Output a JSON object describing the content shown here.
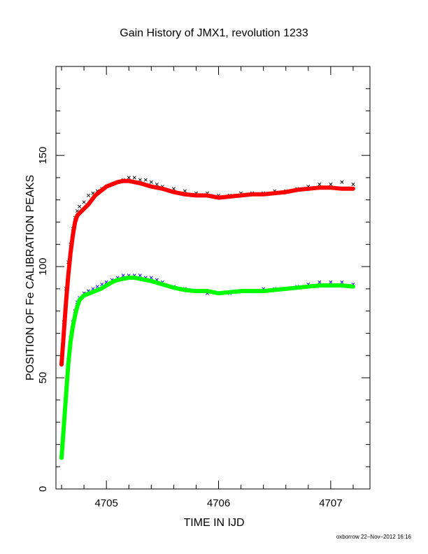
{
  "chart_data": {
    "type": "scatter",
    "title": "Gain History of JMX1, revolution 1233",
    "xlabel": "TIME IN IJD",
    "ylabel": "POSITION OF Fe CALIBRATION PEAKS",
    "xlim": [
      4704.55,
      4707.35
    ],
    "ylim": [
      0,
      190
    ],
    "x_ticks": [
      4705,
      4706,
      4707
    ],
    "y_ticks": [
      0,
      50,
      100,
      150
    ],
    "grid": false,
    "series": [
      {
        "color": "#000000",
        "marker": "x",
        "x": [
          4704.6,
          4704.62,
          4704.64,
          4704.66,
          4704.68,
          4704.7,
          4704.72,
          4704.74,
          4704.76,
          4704.8,
          4704.84,
          4704.88,
          4704.92,
          4704.96,
          4705.0,
          4705.05,
          4705.1,
          4705.15,
          4705.2,
          4705.25,
          4705.3,
          4705.35,
          4705.4,
          4705.45,
          4705.5,
          4705.6,
          4705.7,
          4705.8,
          4705.9,
          4706.0,
          4706.1,
          4706.2,
          4706.3,
          4706.4,
          4706.5,
          4706.6,
          4706.7,
          4706.8,
          4706.9,
          4707.0,
          4707.1,
          4707.2
        ],
        "y": [
          57,
          75,
          90,
          102,
          110,
          117,
          122,
          125,
          127,
          129,
          132,
          133,
          134,
          135,
          136,
          137,
          138,
          139,
          140,
          140,
          139,
          139,
          138,
          137,
          136,
          135,
          134,
          133,
          133,
          132,
          132,
          133,
          133,
          133,
          134,
          134,
          135,
          136,
          137,
          137,
          138,
          137
        ]
      },
      {
        "color": "#ff0000",
        "marker": "smooth",
        "x": [
          4704.6,
          4704.62,
          4704.64,
          4704.66,
          4704.68,
          4704.7,
          4704.72,
          4704.74,
          4704.76,
          4704.78,
          4704.8,
          4704.84,
          4704.9,
          4704.95,
          4705.0,
          4705.05,
          4705.1,
          4705.15,
          4705.2,
          4705.25,
          4705.3,
          4705.4,
          4705.5,
          4705.6,
          4705.7,
          4705.8,
          4705.9,
          4706.0,
          4706.1,
          4706.2,
          4706.3,
          4706.4,
          4706.5,
          4706.6,
          4706.7,
          4706.8,
          4706.9,
          4707.0,
          4707.1,
          4707.2
        ],
        "y": [
          56,
          70,
          84,
          96,
          106,
          114,
          120,
          123,
          124,
          125,
          126,
          128,
          132,
          134,
          136,
          137,
          138,
          138.5,
          138.5,
          138,
          137.5,
          136,
          135,
          133.5,
          132.5,
          132,
          132,
          131,
          131.5,
          132,
          132.5,
          132.5,
          133,
          133.5,
          134.5,
          135,
          135.5,
          135.5,
          135,
          135
        ]
      },
      {
        "color": "#0000ff",
        "marker": "x",
        "x": [
          4704.6,
          4704.62,
          4704.64,
          4704.66,
          4704.68,
          4704.7,
          4704.72,
          4704.74,
          4704.76,
          4704.8,
          4704.84,
          4704.88,
          4704.92,
          4704.96,
          4705.0,
          4705.05,
          4705.1,
          4705.15,
          4705.2,
          4705.25,
          4705.3,
          4705.35,
          4705.4,
          4705.45,
          4705.5,
          4705.6,
          4705.7,
          4705.8,
          4705.9,
          4706.0,
          4706.1,
          4706.2,
          4706.3,
          4706.4,
          4706.5,
          4706.6,
          4706.7,
          4706.8,
          4706.9,
          4707.0,
          4707.1,
          4707.2
        ],
        "y": [
          15,
          30,
          45,
          58,
          68,
          75,
          80,
          84,
          86,
          88,
          89,
          90,
          91,
          92,
          93,
          94,
          95,
          96,
          96,
          96,
          96,
          95,
          95,
          94,
          93,
          91,
          90,
          89,
          88,
          88,
          88,
          89,
          89,
          90,
          90,
          90,
          91,
          92,
          93,
          93,
          93,
          92
        ]
      },
      {
        "color": "#00ff00",
        "marker": "smooth",
        "x": [
          4704.6,
          4704.62,
          4704.64,
          4704.66,
          4704.68,
          4704.7,
          4704.72,
          4704.74,
          4704.76,
          4704.78,
          4704.8,
          4704.85,
          4704.9,
          4704.95,
          4705.0,
          4705.05,
          4705.1,
          4705.15,
          4705.2,
          4705.25,
          4705.3,
          4705.4,
          4705.5,
          4705.6,
          4705.7,
          4705.8,
          4705.9,
          4706.0,
          4706.1,
          4706.2,
          4706.3,
          4706.4,
          4706.5,
          4706.6,
          4706.7,
          4706.8,
          4706.9,
          4707.0,
          4707.1,
          4707.2
        ],
        "y": [
          14,
          28,
          42,
          56,
          66,
          73,
          78,
          82,
          85,
          86,
          87,
          88,
          89,
          90,
          91.5,
          93,
          94,
          94.5,
          95,
          95,
          94.5,
          93.5,
          92,
          90.5,
          89.5,
          89,
          89,
          88,
          88.5,
          89,
          89,
          89,
          89.5,
          90,
          90.5,
          91,
          91.5,
          91.5,
          91.5,
          91
        ]
      }
    ]
  },
  "footer": {
    "credit": "oxborrow 22–Nov–2012 16:16"
  }
}
